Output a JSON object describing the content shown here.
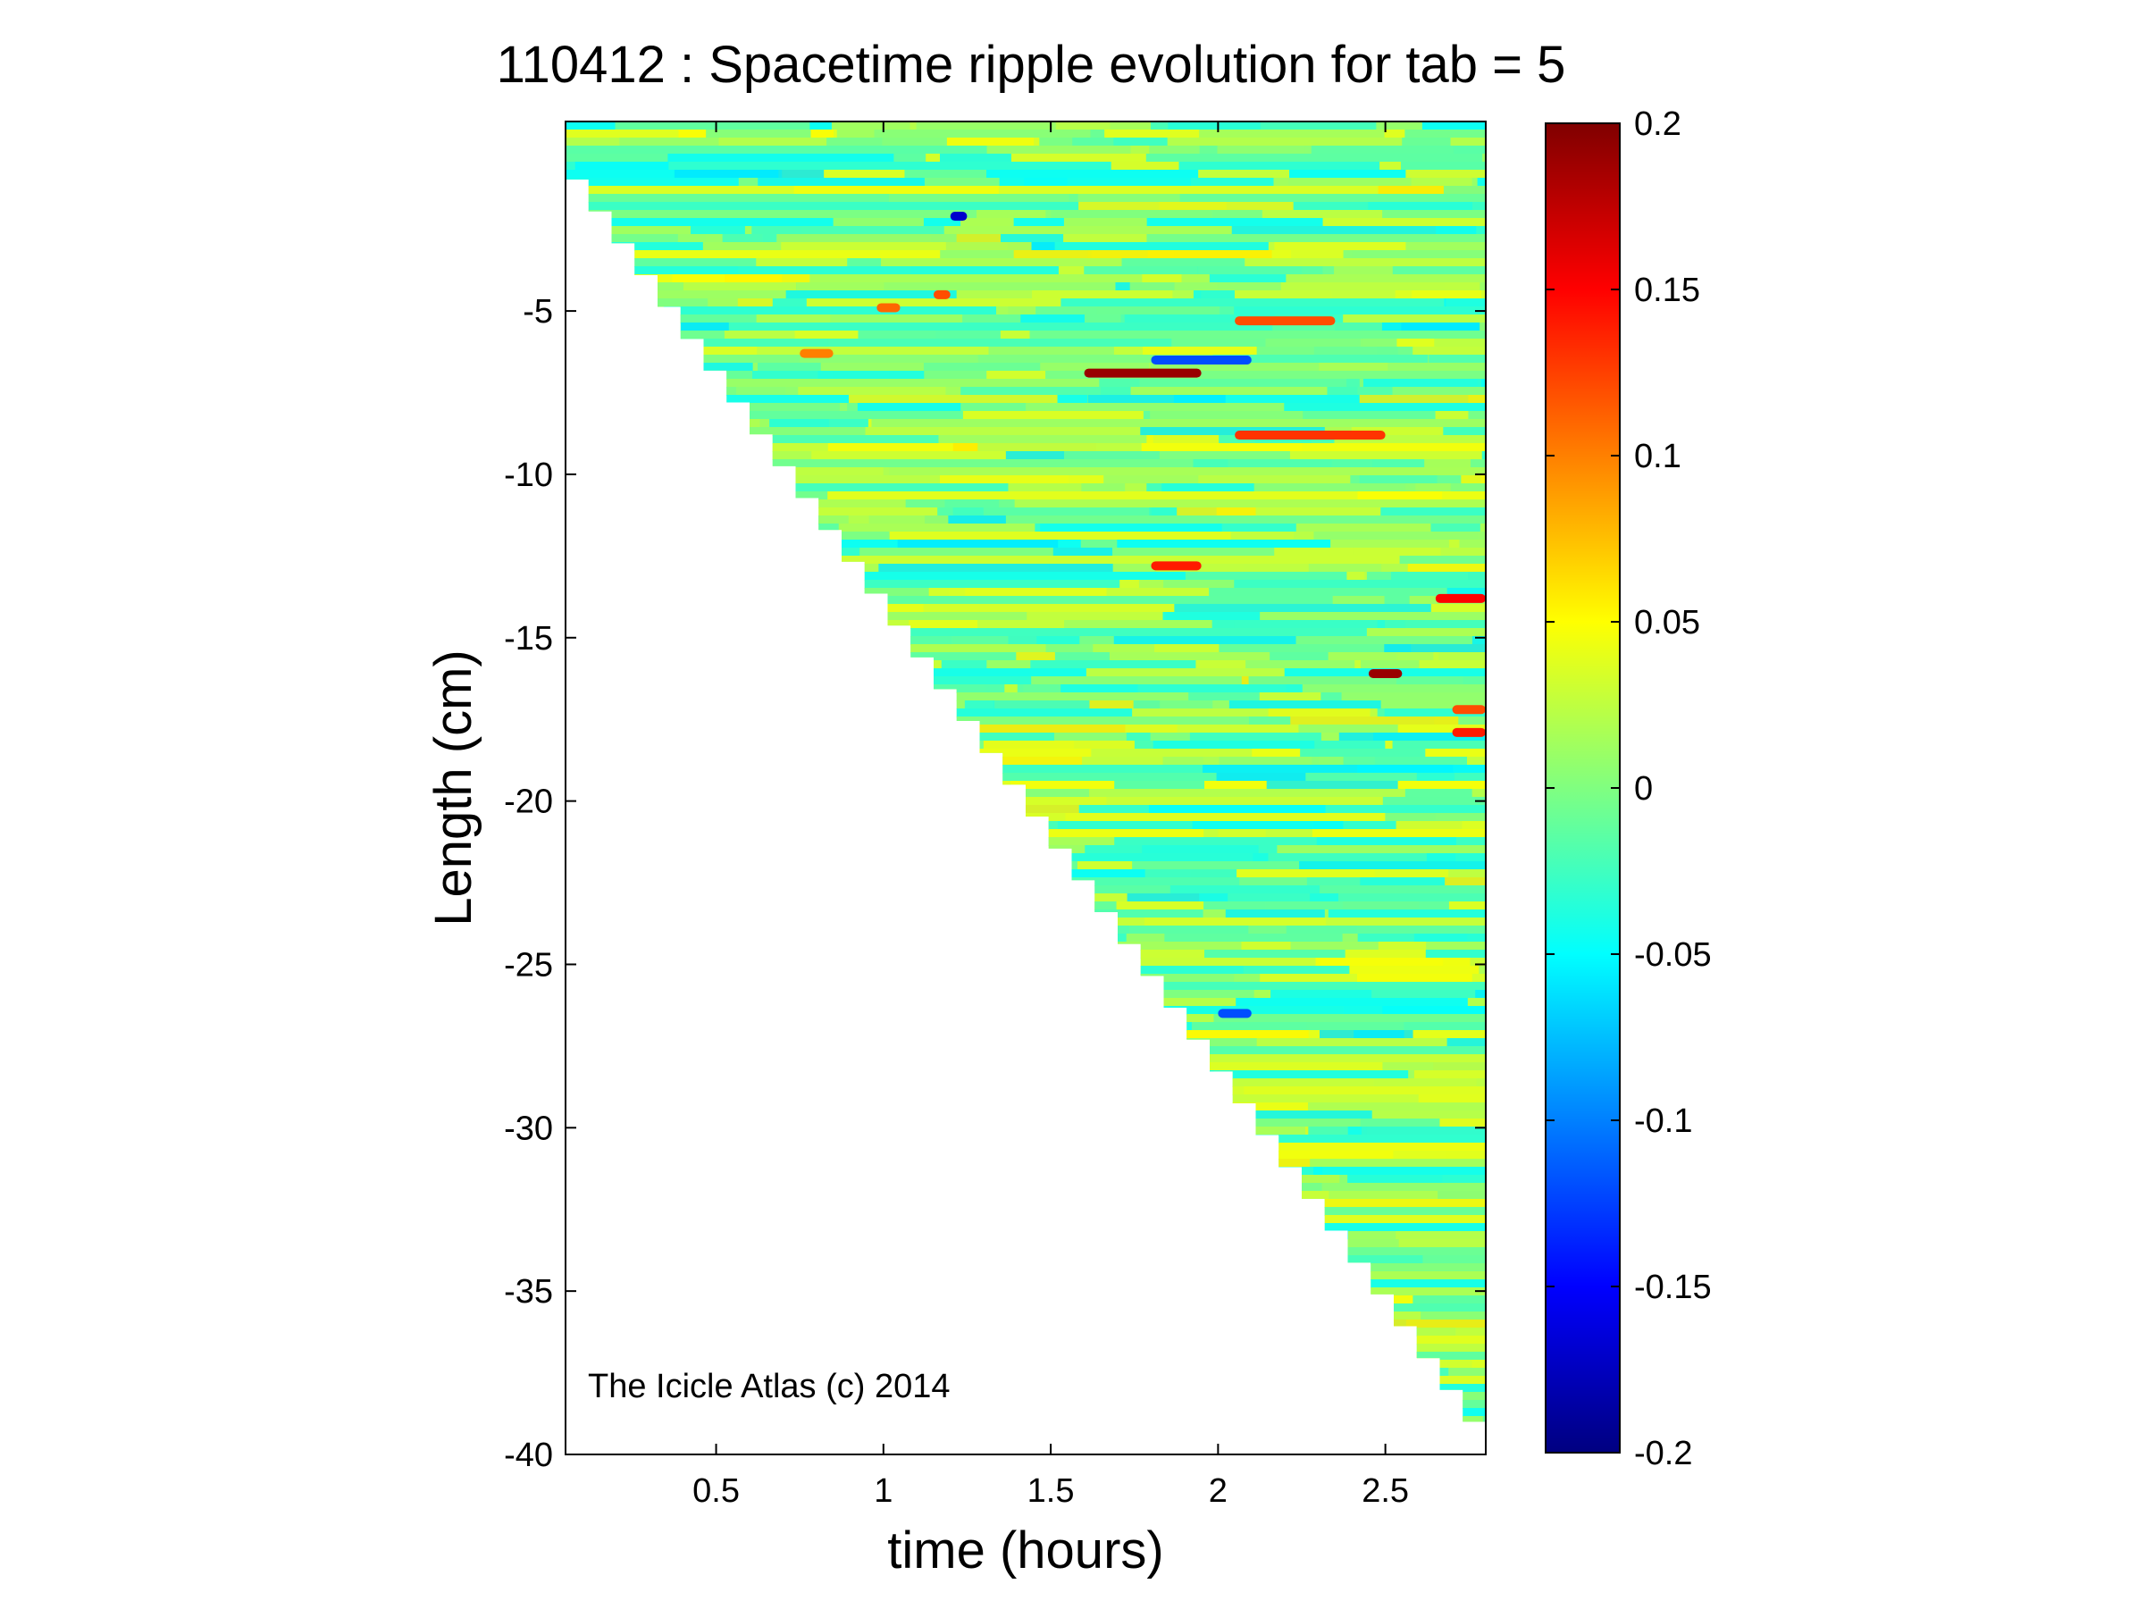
{
  "chart_data": {
    "type": "heatmap",
    "title": "110412 : Spacetime ripple evolution for tab = 5",
    "xlabel": "time (hours)",
    "ylabel": "Length (cm)",
    "annotation": "The Icicle Atlas (c) 2014",
    "xlim": [
      0.05,
      2.8
    ],
    "ylim": [
      -40,
      0.8
    ],
    "xticks": [
      0.5,
      1,
      1.5,
      2,
      2.5
    ],
    "xtick_labels": [
      "0.5",
      "1",
      "1.5",
      "2",
      "2.5"
    ],
    "yticks": [
      -40,
      -35,
      -30,
      -25,
      -20,
      -15,
      -10,
      -5
    ],
    "ytick_labels": [
      "-40",
      "-35",
      "-30",
      "-25",
      "-20",
      "-15",
      "-10",
      "-5"
    ],
    "colorbar": {
      "colormap": "jet",
      "clim": [
        -0.2,
        0.2
      ],
      "ticks": [
        0.2,
        0.15,
        0.1,
        0.05,
        0,
        -0.05,
        -0.1,
        -0.15,
        -0.2
      ],
      "tick_labels": [
        "0.2",
        "0.15",
        "0.1",
        "0.05",
        "0",
        "-0.05",
        "-0.1",
        "-0.15",
        "-0.2"
      ]
    },
    "length_front": {
      "time_hours": [
        0.05,
        2.8
      ],
      "length_cm": [
        0,
        -39
      ]
    },
    "grid": false,
    "values_description_note": null,
    "notable_features": [
      {
        "time_hours": [
          1.15,
          1.2
        ],
        "length_cm": -4.5,
        "value": 0.12
      },
      {
        "time_hours": [
          0.98,
          1.05
        ],
        "length_cm": -4.9,
        "value": 0.11
      },
      {
        "time_hours": [
          0.75,
          0.85
        ],
        "length_cm": -6.3,
        "value": 0.1
      },
      {
        "time_hours": [
          1.6,
          1.95
        ],
        "length_cm": -6.9,
        "value": 0.19
      },
      {
        "time_hours": [
          1.8,
          2.1
        ],
        "length_cm": -6.5,
        "value": -0.12
      },
      {
        "time_hours": [
          2.05,
          2.5
        ],
        "length_cm": -8.8,
        "value": 0.13
      },
      {
        "time_hours": [
          2.05,
          2.35
        ],
        "length_cm": -5.3,
        "value": 0.12
      },
      {
        "time_hours": [
          1.8,
          1.95
        ],
        "length_cm": -12.8,
        "value": 0.14
      },
      {
        "time_hours": [
          1.2,
          1.25
        ],
        "length_cm": -2.1,
        "value": -0.17
      },
      {
        "time_hours": [
          2.45,
          2.55
        ],
        "length_cm": -16.1,
        "value": 0.19
      },
      {
        "time_hours": [
          2.65,
          2.8
        ],
        "length_cm": -13.8,
        "value": 0.15
      },
      {
        "time_hours": [
          2.7,
          2.8
        ],
        "length_cm": -17.2,
        "value": 0.12
      },
      {
        "time_hours": [
          2.7,
          2.8
        ],
        "length_cm": -17.9,
        "value": 0.14
      },
      {
        "time_hours": [
          2.0,
          2.1
        ],
        "length_cm": -26.5,
        "value": -0.12
      }
    ]
  }
}
